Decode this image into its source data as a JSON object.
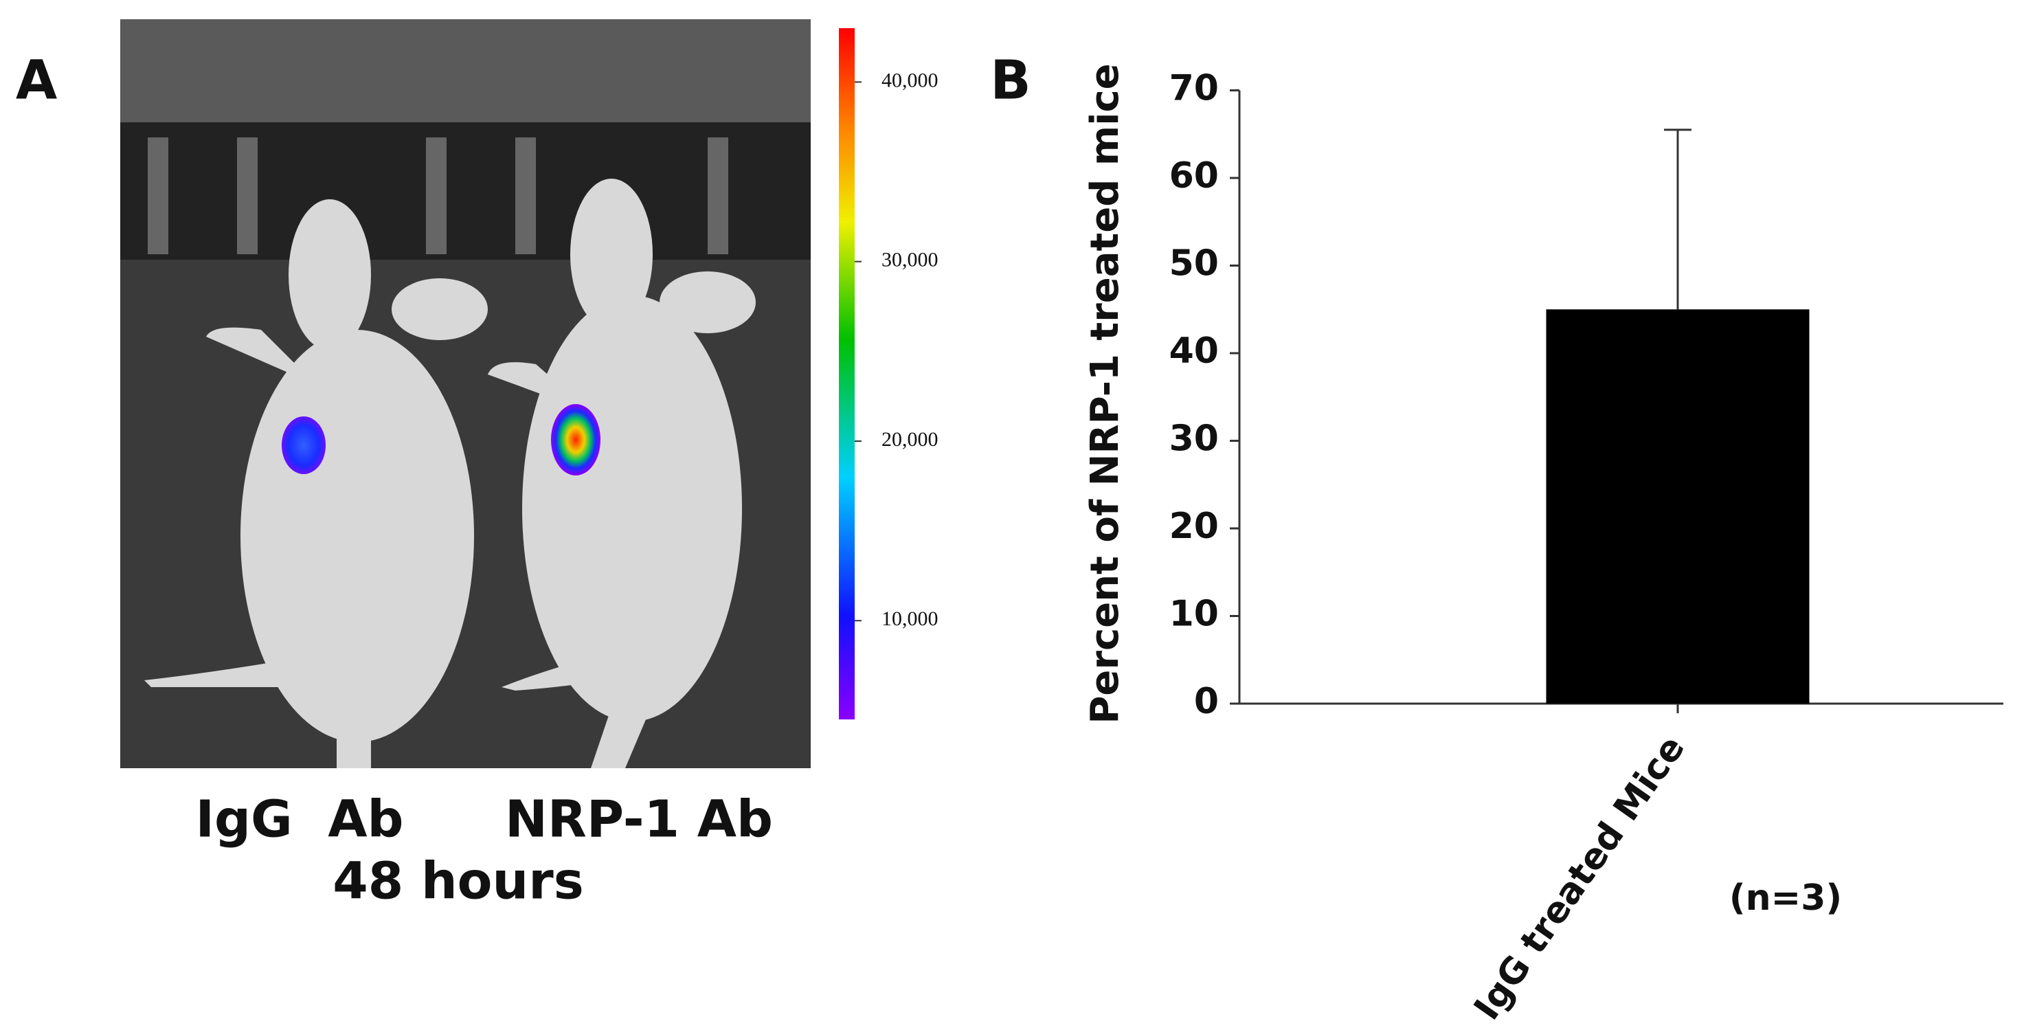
{
  "panel_a": {
    "label": "A",
    "left_label": "IgG  Ab",
    "right_label": "NRP-1 Ab",
    "time_label": "48 hours",
    "colorbar": {
      "range": [
        4500,
        43000
      ],
      "ticks": [
        {
          "value": 10000,
          "label": "10,000"
        },
        {
          "value": 20000,
          "label": "20,000"
        },
        {
          "value": 30000,
          "label": "30,000"
        },
        {
          "value": 40000,
          "label": "40,000"
        }
      ]
    }
  },
  "chart_data": {
    "type": "bar",
    "panel_label": "B",
    "ylabel": "Percent of NRP-1 treated mice",
    "categories": [
      "IgG treated Mice"
    ],
    "values": [
      45
    ],
    "errors": [
      20.5
    ],
    "color": "#000000",
    "ylim": [
      0,
      70
    ],
    "yticks": [
      0,
      10,
      20,
      30,
      40,
      50,
      60,
      70
    ],
    "annotation": "(n=3)"
  }
}
